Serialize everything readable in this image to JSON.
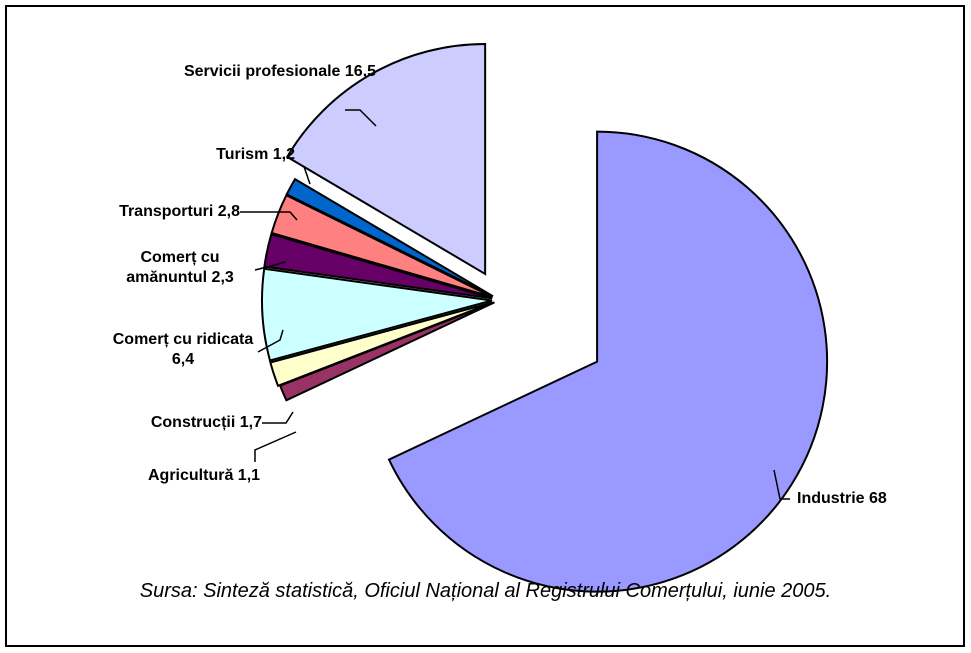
{
  "chart_data": {
    "type": "pie",
    "categories": [
      "Industrie",
      "Agricultură",
      "Construcții",
      "Comerț cu ridicata",
      "Comerț cu amănuntul",
      "Transporturi",
      "Turism",
      "Servicii profesionale"
    ],
    "values": [
      68,
      1.1,
      1.7,
      6.4,
      2.3,
      2.8,
      1.2,
      16.5
    ],
    "value_labels": [
      "68",
      "1,1",
      "1,7",
      "6,4",
      "2,3",
      "2,8",
      "1,2",
      "16,5"
    ],
    "colors": [
      "#9999ff",
      "#993366",
      "#ffffcc",
      "#ccffff",
      "#660066",
      "#ff8080",
      "#0066cc",
      "#ccccff"
    ],
    "source": "Sursa: Sinteză statistică, Oficiul Național al Registrului Comerțului, iunie 2005."
  }
}
